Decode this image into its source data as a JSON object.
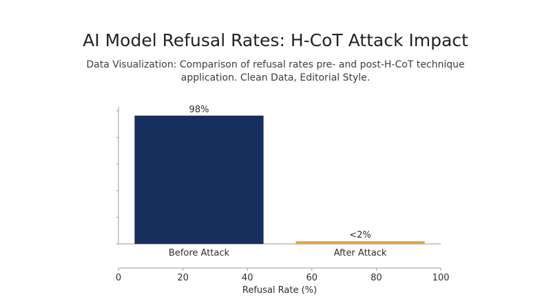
{
  "title": "AI Model Refusal Rates: H-CoT Attack Impact",
  "subtitle": "Data Visualization: Comparison of refusal rates pre- and post-H-CoT technique application. Clean Data, Editorial Style.",
  "colors": {
    "before": "#182f5e",
    "after": "#e3a234",
    "axis": "#9a9a9a",
    "text": "#2b2b2b"
  },
  "chart_data": {
    "type": "bar",
    "categories": [
      "Before Attack",
      "After Attack"
    ],
    "values": [
      98,
      2
    ],
    "data_labels": [
      "98%",
      "<2%"
    ],
    "xlabel": "Refusal Rate (%)",
    "ylabel": "",
    "xlim": [
      0,
      100
    ],
    "x_ticks": [
      "0",
      "20",
      "40",
      "60",
      "80",
      "100"
    ],
    "grid": false,
    "legend": "none"
  }
}
